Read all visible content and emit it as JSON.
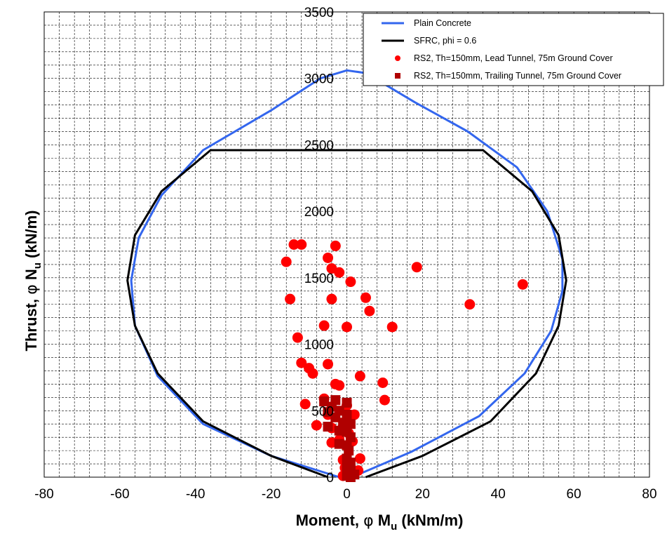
{
  "chart_data": {
    "type": "scatter",
    "xlim": [
      -80,
      80
    ],
    "ylim": [
      0,
      3500
    ],
    "x_ticks": [
      -80,
      -60,
      -40,
      -20,
      0,
      20,
      40,
      60,
      80
    ],
    "y_ticks": [
      0,
      500,
      1000,
      1500,
      2000,
      2500,
      3000,
      3500
    ],
    "grid": true,
    "legend_position": "top-right",
    "xlabel": {
      "main": "Moment,  ",
      "phi": "φ",
      "var": " M",
      "sub": "u",
      "unit": " (kNm/m)"
    },
    "ylabel": {
      "main": "Thrust,  ",
      "phi": "φ",
      "var": " N",
      "sub": "u",
      "unit": " (kN/m)"
    },
    "colors": {
      "plain": "#3366ee",
      "sfrc": "#000000",
      "lead": "#ff0000",
      "trail": "#b00000"
    },
    "series": [
      {
        "name": "Plain Concrete",
        "kind": "line",
        "points": [
          [
            -2,
            0
          ],
          [
            -20,
            160
          ],
          [
            -38,
            400
          ],
          [
            -50,
            760
          ],
          [
            -56,
            1140
          ],
          [
            -57,
            1480
          ],
          [
            -55,
            1800
          ],
          [
            -49,
            2120
          ],
          [
            -38,
            2460
          ],
          [
            -20,
            2760
          ],
          [
            -7,
            3000
          ],
          [
            0,
            3060
          ],
          [
            5,
            3040
          ],
          [
            18,
            2820
          ],
          [
            32,
            2600
          ],
          [
            45,
            2330
          ],
          [
            53,
            2000
          ],
          [
            57,
            1640
          ],
          [
            57,
            1400
          ],
          [
            54,
            1100
          ],
          [
            47,
            780
          ],
          [
            35,
            460
          ],
          [
            17,
            190
          ],
          [
            3,
            20
          ],
          [
            -2,
            0
          ]
        ]
      },
      {
        "name": "SFRC, phi = 0.6",
        "kind": "line",
        "points": [
          [
            5,
            0
          ],
          [
            20,
            160
          ],
          [
            38,
            420
          ],
          [
            50,
            780
          ],
          [
            56,
            1140
          ],
          [
            58,
            1480
          ],
          [
            56,
            1820
          ],
          [
            49,
            2150
          ],
          [
            36,
            2460
          ],
          [
            -36,
            2460
          ],
          [
            -49,
            2150
          ],
          [
            -56,
            1820
          ],
          [
            -58,
            1480
          ],
          [
            -56,
            1140
          ],
          [
            -50,
            780
          ],
          [
            -38,
            420
          ],
          [
            -20,
            160
          ],
          [
            -5,
            0
          ]
        ]
      },
      {
        "name": "RS2, Th=150mm, Lead Tunnel, 75m Ground Cover",
        "kind": "circle",
        "points": [
          [
            -14,
            1750
          ],
          [
            -12,
            1750
          ],
          [
            -3,
            1740
          ],
          [
            -5,
            1650
          ],
          [
            -16,
            1620
          ],
          [
            -4,
            1570
          ],
          [
            -2,
            1540
          ],
          [
            1,
            1470
          ],
          [
            18.5,
            1580
          ],
          [
            46.5,
            1450
          ],
          [
            -15,
            1340
          ],
          [
            -4,
            1340
          ],
          [
            5,
            1350
          ],
          [
            6,
            1250
          ],
          [
            32.5,
            1300
          ],
          [
            -6,
            1140
          ],
          [
            0,
            1130
          ],
          [
            12,
            1130
          ],
          [
            -13,
            1050
          ],
          [
            -12,
            860
          ],
          [
            -5,
            850
          ],
          [
            -10,
            820
          ],
          [
            -9,
            780
          ],
          [
            3.5,
            760
          ],
          [
            -3,
            700
          ],
          [
            -2,
            690
          ],
          [
            9.5,
            710
          ],
          [
            -11,
            550
          ],
          [
            10,
            580
          ],
          [
            -6,
            590
          ],
          [
            -5,
            470
          ],
          [
            0,
            540
          ],
          [
            2,
            470
          ],
          [
            -8,
            390
          ],
          [
            -4,
            370
          ],
          [
            -1,
            380
          ],
          [
            0.5,
            330
          ],
          [
            -4,
            260
          ],
          [
            -2,
            280
          ],
          [
            1.5,
            270
          ],
          [
            -1,
            130
          ],
          [
            3.5,
            140
          ],
          [
            -0.5,
            70
          ],
          [
            3,
            50
          ],
          [
            0.5,
            50
          ],
          [
            -1,
            10
          ]
        ]
      },
      {
        "name": "RS2, Th=150mm, Trailing Tunnel, 75m Ground Cover",
        "kind": "square",
        "points": [
          [
            -6,
            570
          ],
          [
            -3,
            580
          ],
          [
            -4,
            530
          ],
          [
            -5,
            490
          ],
          [
            -3,
            450
          ],
          [
            0,
            560
          ],
          [
            -2,
            500
          ],
          [
            0,
            470
          ],
          [
            -1,
            410
          ],
          [
            1,
            400
          ],
          [
            -5,
            380
          ],
          [
            -2,
            350
          ],
          [
            0,
            340
          ],
          [
            1,
            300
          ],
          [
            -2,
            250
          ],
          [
            0,
            240
          ],
          [
            0.5,
            200
          ],
          [
            0,
            140
          ],
          [
            1,
            110
          ],
          [
            0,
            80
          ],
          [
            1,
            60
          ],
          [
            0,
            40
          ],
          [
            0,
            10
          ],
          [
            1,
            0
          ],
          [
            2,
            20
          ]
        ]
      }
    ]
  }
}
